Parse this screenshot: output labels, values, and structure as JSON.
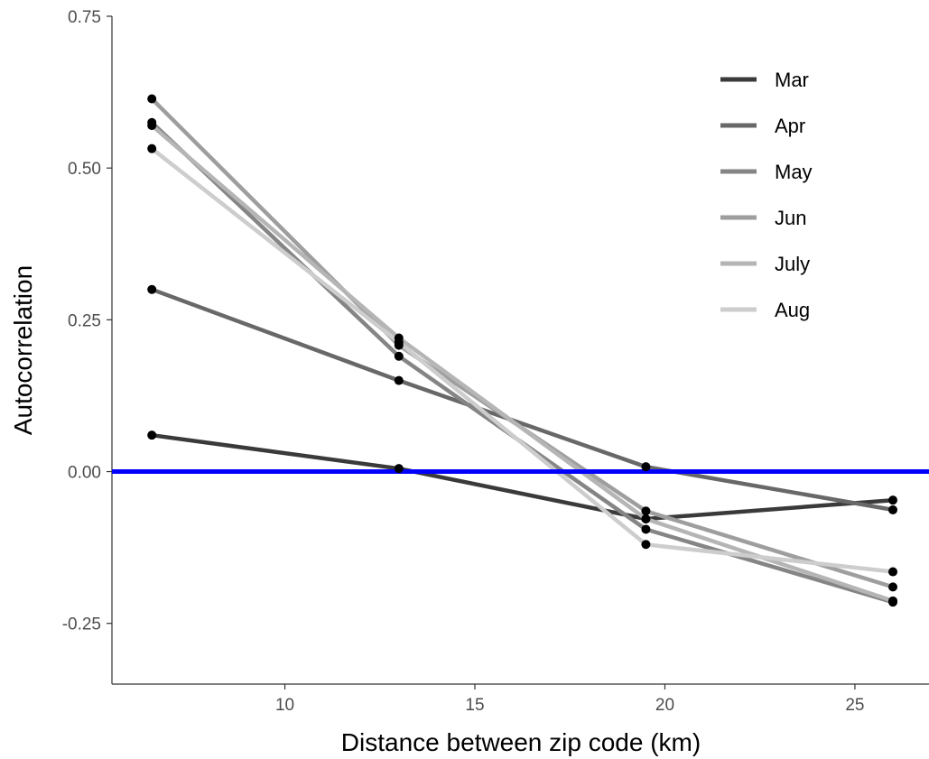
{
  "chart_data": {
    "type": "line",
    "xlabel": "Distance between zip code (km)",
    "ylabel": "Autocorrelation",
    "xlim": [
      5.45,
      26.95
    ],
    "ylim": [
      -0.35,
      0.75
    ],
    "x_ticks": [
      10,
      15,
      20,
      25
    ],
    "x_tick_labels": [
      "10",
      "15",
      "20",
      "25"
    ],
    "y_ticks": [
      -0.25,
      0,
      0.25,
      0.5,
      0.75
    ],
    "y_tick_labels": [
      "-0.25",
      "0.00",
      "0.25",
      "0.50",
      "0.75"
    ],
    "x": [
      6.5,
      13,
      19.5,
      26
    ],
    "series": [
      {
        "name": "Mar",
        "color": "#3a3a3a",
        "values": [
          0.06,
          0.005,
          -0.078,
          -0.047
        ]
      },
      {
        "name": "Apr",
        "color": "#686868",
        "values": [
          0.3,
          0.15,
          0.008,
          -0.063
        ]
      },
      {
        "name": "May",
        "color": "#858585",
        "values": [
          0.575,
          0.19,
          -0.095,
          -0.215
        ]
      },
      {
        "name": "Jun",
        "color": "#9e9e9e",
        "values": [
          0.614,
          0.208,
          -0.065,
          -0.19
        ]
      },
      {
        "name": "July",
        "color": "#b5b5b5",
        "values": [
          0.57,
          0.22,
          -0.078,
          -0.213
        ]
      },
      {
        "name": "Aug",
        "color": "#cdcdcd",
        "values": [
          0.532,
          0.213,
          -0.12,
          -0.165
        ]
      }
    ],
    "reference_line": {
      "y": 0,
      "color": "#0000ff"
    },
    "legend_position": "top-right",
    "grid": false
  }
}
